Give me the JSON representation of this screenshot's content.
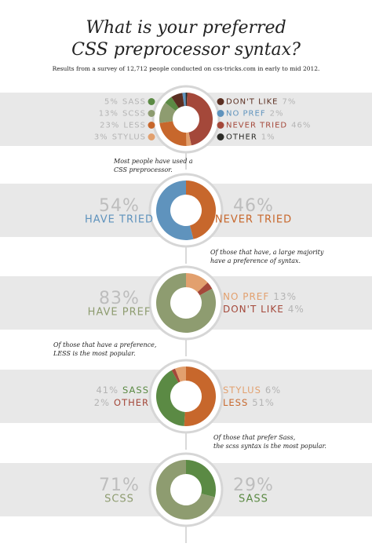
{
  "header": {
    "title": [
      "What is your preferred",
      "CSS preprocessor syntax?"
    ],
    "subtitle": "Results from a survey of 12,712 people conducted on css-tricks.com in early to mid 2012."
  },
  "notes": [
    [
      "Most people have used a",
      "CSS preprocessor."
    ],
    [
      "Of those that have, a large majority",
      "have a preference of syntax."
    ],
    [
      "Of those that have a preference,",
      "LESS is the most popular."
    ],
    [
      "Of those that prefer Sass,",
      "the scss syntax is the most popular."
    ]
  ],
  "chart_data": [
    {
      "type": "pie",
      "donut": true,
      "categories": [
        "SASS",
        "SCSS",
        "LESS",
        "STYLUS",
        "DON'T LIKE",
        "NO PREF",
        "NEVER TRIED",
        "OTHER"
      ],
      "values": [
        5,
        13,
        23,
        3,
        7,
        2,
        46,
        1
      ],
      "value_labels": [
        "5%",
        "13%",
        "23%",
        "3%",
        "7%",
        "2%",
        "46%",
        "1%"
      ],
      "colors": [
        "#5b8a44",
        "#8e9c70",
        "#c7672c",
        "#e2a06e",
        "#5b2f22",
        "#5f93bd",
        "#a4483a",
        "#2b2b27"
      ]
    },
    {
      "type": "pie",
      "donut": true,
      "categories": [
        "HAVE TRIED",
        "NEVER TRIED"
      ],
      "values": [
        54,
        46
      ],
      "value_labels": [
        "54%",
        "46%"
      ],
      "colors": [
        "#5f93bd",
        "#c7672c"
      ]
    },
    {
      "type": "pie",
      "donut": true,
      "categories": [
        "HAVE PREF",
        "NO PREF",
        "DON'T LIKE"
      ],
      "values": [
        83,
        13,
        4
      ],
      "value_labels": [
        "83%",
        "13%",
        "4%"
      ],
      "colors": [
        "#8e9c70",
        "#e2a06e",
        "#a4483a"
      ]
    },
    {
      "type": "pie",
      "donut": true,
      "categories": [
        "SASS",
        "OTHER",
        "STYLUS",
        "LESS"
      ],
      "values": [
        41,
        2,
        6,
        51
      ],
      "value_labels": [
        "41%",
        "2%",
        "6%",
        "51%"
      ],
      "colors": [
        "#5b8a44",
        "#a4483a",
        "#e2a06e",
        "#c7672c"
      ]
    },
    {
      "type": "pie",
      "donut": true,
      "categories": [
        "SCSS",
        "SASS"
      ],
      "values": [
        71,
        29
      ],
      "value_labels": [
        "71%",
        "29%"
      ],
      "colors": [
        "#8e9c70",
        "#5b8a44"
      ]
    }
  ]
}
